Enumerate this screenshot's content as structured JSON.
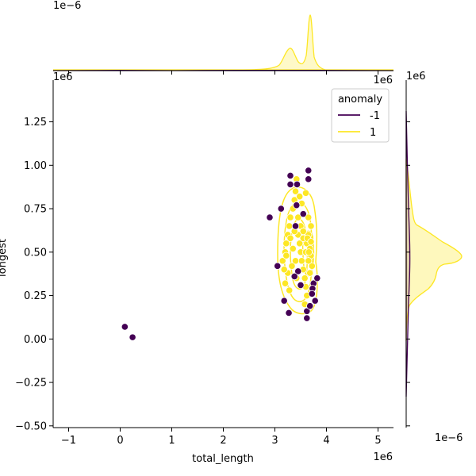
{
  "chart_data": {
    "type": "scatter",
    "title": "",
    "xlabel": "total_length",
    "ylabel": "longest",
    "x_offset": "1e6",
    "y_offset": "1e6",
    "top_marginal_offset": "1e−6",
    "right_marginal_offset": "1e−6",
    "xlim": [
      -1.3,
      5.3
    ],
    "ylim": [
      -0.51,
      1.49
    ],
    "x_ticks": [
      -1,
      0,
      1,
      2,
      3,
      4,
      5
    ],
    "x_tick_labels": [
      "−1",
      "0",
      "1",
      "2",
      "3",
      "4",
      "5"
    ],
    "y_ticks": [
      -0.5,
      -0.25,
      0.0,
      0.25,
      0.5,
      0.75,
      1.0,
      1.25
    ],
    "y_tick_labels": [
      "−0.50",
      "−0.25",
      "0.00",
      "0.25",
      "0.50",
      "0.75",
      "1.00",
      "1.25"
    ],
    "grid": false,
    "legend": {
      "title": "anomaly",
      "placement": "top-right",
      "entries": [
        {
          "label": "-1",
          "color": "#440154"
        },
        {
          "label": "1",
          "color": "#fde725"
        }
      ]
    },
    "colors": {
      "anomaly": "#440154",
      "normal": "#fde725"
    },
    "series": [
      {
        "name": "-1",
        "color": "#440154",
        "points": [
          [
            0.09,
            0.07
          ],
          [
            0.24,
            0.01
          ],
          [
            2.9,
            0.7
          ],
          [
            3.05,
            0.42
          ],
          [
            3.12,
            0.75
          ],
          [
            3.18,
            0.22
          ],
          [
            3.27,
            0.15
          ],
          [
            3.3,
            0.94
          ],
          [
            3.3,
            0.89
          ],
          [
            3.4,
            0.65
          ],
          [
            3.42,
            0.77
          ],
          [
            3.43,
            0.89
          ],
          [
            3.45,
            0.39
          ],
          [
            3.38,
            0.36
          ],
          [
            3.55,
            0.72
          ],
          [
            3.65,
            0.97
          ],
          [
            3.65,
            0.92
          ],
          [
            3.62,
            0.16
          ],
          [
            3.62,
            0.12
          ],
          [
            3.75,
            0.32
          ],
          [
            3.73,
            0.29
          ],
          [
            3.72,
            0.26
          ],
          [
            3.78,
            0.22
          ],
          [
            3.82,
            0.35
          ],
          [
            3.68,
            0.19
          ],
          [
            3.5,
            0.31
          ]
        ]
      },
      {
        "name": "1",
        "color": "#fde725",
        "points": [
          [
            3.15,
            0.45
          ],
          [
            3.2,
            0.5
          ],
          [
            3.22,
            0.55
          ],
          [
            3.25,
            0.6
          ],
          [
            3.28,
            0.65
          ],
          [
            3.3,
            0.7
          ],
          [
            3.35,
            0.75
          ],
          [
            3.38,
            0.8
          ],
          [
            3.4,
            0.85
          ],
          [
            3.42,
            0.92
          ],
          [
            3.45,
            0.6
          ],
          [
            3.48,
            0.55
          ],
          [
            3.5,
            0.5
          ],
          [
            3.52,
            0.45
          ],
          [
            3.55,
            0.4
          ],
          [
            3.58,
            0.35
          ],
          [
            3.6,
            0.3
          ],
          [
            3.62,
            0.55
          ],
          [
            3.65,
            0.6
          ],
          [
            3.68,
            0.52
          ],
          [
            3.7,
            0.48
          ],
          [
            3.72,
            0.42
          ],
          [
            3.65,
            0.45
          ],
          [
            3.6,
            0.5
          ],
          [
            3.55,
            0.58
          ],
          [
            3.5,
            0.65
          ],
          [
            3.45,
            0.7
          ],
          [
            3.25,
            0.38
          ],
          [
            3.2,
            0.32
          ],
          [
            3.28,
            0.28
          ],
          [
            3.18,
            0.4
          ],
          [
            3.22,
            0.48
          ],
          [
            3.35,
            0.52
          ],
          [
            3.4,
            0.45
          ],
          [
            3.3,
            0.58
          ],
          [
            3.65,
            0.7
          ],
          [
            3.7,
            0.65
          ],
          [
            3.68,
            0.38
          ],
          [
            3.62,
            0.25
          ],
          [
            3.58,
            0.2
          ],
          [
            3.52,
            0.78
          ],
          [
            3.48,
            0.82
          ],
          [
            3.6,
            0.84
          ],
          [
            3.55,
            0.62
          ],
          [
            3.38,
            0.62
          ],
          [
            3.33,
            0.42
          ],
          [
            3.42,
            0.35
          ],
          [
            3.63,
            0.58
          ],
          [
            3.66,
            0.5
          ],
          [
            3.7,
            0.56
          ]
        ]
      }
    ]
  }
}
